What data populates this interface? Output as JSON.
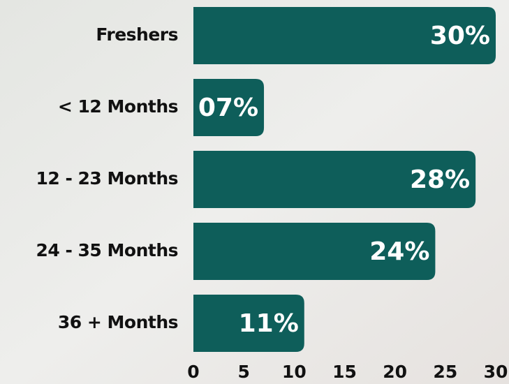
{
  "chart_data": {
    "type": "bar",
    "orientation": "horizontal",
    "categories": [
      "Freshers",
      "< 12 Months",
      "12 - 23 Months",
      "24 - 35 Months",
      "36 + Months"
    ],
    "values": [
      30,
      7,
      28,
      24,
      11
    ],
    "value_labels": [
      "30%",
      "07%",
      "28%",
      "24%",
      "11%"
    ],
    "color": "#0e5e5a",
    "xlim": [
      0,
      30
    ],
    "xticks": [
      0,
      5,
      10,
      15,
      20,
      25,
      30
    ],
    "grid": false
  }
}
